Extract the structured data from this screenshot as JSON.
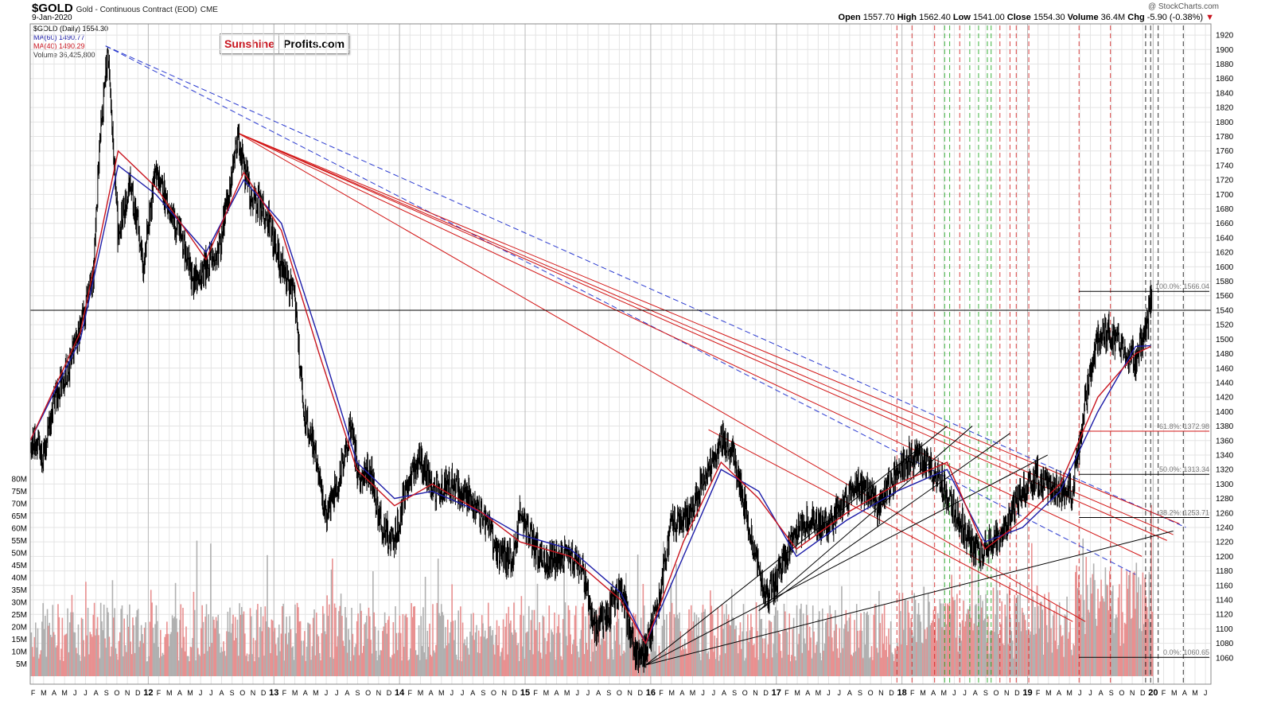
{
  "header": {
    "symbol": "$GOLD",
    "title": "Gold - Continuous Contract (EOD)",
    "exchange": "CME",
    "date": "9-Jan-2020",
    "source": "@ StockCharts.com",
    "open_label": "Open",
    "open": "1557.70",
    "high_label": "High",
    "high": "1562.40",
    "low_label": "Low",
    "low": "1541.00",
    "close_label": "Close",
    "close": "1554.30",
    "volume_label": "Volume",
    "volume": "36.4M",
    "chg_label": "Chg",
    "chg": "-5.90 (-0.38%)"
  },
  "legend": {
    "price": "$GOLD (Daily) 1554.30",
    "ma60": "MA(60) 1490.77",
    "ma40": "MA(40) 1490.29",
    "volume": "Volume 36,425,800"
  },
  "logo": {
    "part1": "Sunshine",
    "part2": "Profits.com"
  },
  "colors": {
    "ma60": "#1c1ca8",
    "ma40": "#c8141e",
    "candle": "#000000",
    "vol_up": "#b0b0b0",
    "vol_down": "#e89090",
    "red_line": "#d21414",
    "blue_dash": "#2a3ad0",
    "green_dash": "#10a010",
    "grid": "#e4e4e4"
  },
  "chart_data": {
    "type": "line",
    "title": "$GOLD Gold - Continuous Contract (EOD)",
    "xlabel": "",
    "ylabel": "",
    "ylim": [
      1040,
      1930
    ],
    "price_ticks": [
      1060,
      1080,
      1100,
      1120,
      1140,
      1160,
      1180,
      1200,
      1220,
      1240,
      1260,
      1280,
      1300,
      1320,
      1340,
      1360,
      1380,
      1400,
      1420,
      1440,
      1460,
      1480,
      1500,
      1520,
      1540,
      1560,
      1580,
      1600,
      1620,
      1640,
      1660,
      1680,
      1700,
      1720,
      1740,
      1760,
      1780,
      1800,
      1820,
      1840,
      1860,
      1880,
      1900,
      1920
    ],
    "volume_ticks": [
      "5M",
      "10M",
      "15M",
      "20M",
      "25M",
      "30M",
      "35M",
      "40M",
      "45M",
      "50M",
      "55M",
      "60M",
      "65M",
      "70M",
      "75M",
      "80M"
    ],
    "volume_max_m": 80,
    "x_range": [
      2011.1,
      2020.5
    ],
    "month_letters": [
      "J",
      "F",
      "M",
      "A",
      "M",
      "J",
      "J",
      "A",
      "S",
      "O",
      "N",
      "D"
    ],
    "year_labels": [
      "12",
      "13",
      "14",
      "15",
      "16",
      "17",
      "18",
      "19",
      "20"
    ],
    "grid": true,
    "series": [
      {
        "name": "$GOLD",
        "style": "candles",
        "x": [
          2011.1,
          2011.2,
          2011.3,
          2011.4,
          2011.5,
          2011.6,
          2011.65,
          2011.72,
          2011.8,
          2011.9,
          2012.0,
          2012.1,
          2012.2,
          2012.3,
          2012.4,
          2012.5,
          2012.6,
          2012.7,
          2012.75,
          2012.85,
          2012.95,
          2013.0,
          2013.1,
          2013.2,
          2013.28,
          2013.35,
          2013.45,
          2013.55,
          2013.65,
          2013.72,
          2013.8,
          2013.9,
          2014.0,
          2014.1,
          2014.2,
          2014.3,
          2014.45,
          2014.6,
          2014.72,
          2014.85,
          2014.95,
          2015.0,
          2015.1,
          2015.2,
          2015.35,
          2015.5,
          2015.6,
          2015.7,
          2015.8,
          2015.92,
          2016.0,
          2016.1,
          2016.2,
          2016.35,
          2016.5,
          2016.6,
          2016.7,
          2016.8,
          2016.95,
          2017.0,
          2017.15,
          2017.3,
          2017.45,
          2017.6,
          2017.7,
          2017.85,
          2017.95,
          2018.1,
          2018.25,
          2018.35,
          2018.45,
          2018.55,
          2018.65,
          2018.75,
          2018.85,
          2018.95,
          2019.1,
          2019.2,
          2019.3,
          2019.4,
          2019.5,
          2019.6,
          2019.7,
          2019.8,
          2019.9,
          2020.0,
          2020.02
        ],
        "y": [
          1360,
          1340,
          1420,
          1460,
          1520,
          1580,
          1760,
          1900,
          1640,
          1720,
          1600,
          1740,
          1680,
          1640,
          1580,
          1600,
          1620,
          1720,
          1780,
          1700,
          1680,
          1660,
          1600,
          1560,
          1400,
          1360,
          1260,
          1300,
          1380,
          1300,
          1320,
          1240,
          1220,
          1300,
          1340,
          1290,
          1300,
          1280,
          1250,
          1200,
          1200,
          1260,
          1220,
          1190,
          1200,
          1180,
          1100,
          1120,
          1160,
          1060,
          1070,
          1140,
          1240,
          1260,
          1320,
          1360,
          1340,
          1260,
          1140,
          1150,
          1220,
          1250,
          1240,
          1280,
          1300,
          1270,
          1300,
          1340,
          1330,
          1300,
          1270,
          1230,
          1200,
          1220,
          1230,
          1280,
          1310,
          1300,
          1290,
          1290,
          1420,
          1500,
          1510,
          1490,
          1470,
          1530,
          1554
        ]
      },
      {
        "name": "MA(60)",
        "x": [
          2011.1,
          2011.5,
          2011.8,
          2012.1,
          2012.5,
          2012.8,
          2013.1,
          2013.4,
          2013.7,
          2014.0,
          2014.3,
          2014.7,
          2015.0,
          2015.4,
          2015.8,
          2016.0,
          2016.3,
          2016.6,
          2016.9,
          2017.2,
          2017.6,
          2018.0,
          2018.4,
          2018.7,
          2019.0,
          2019.3,
          2019.6,
          2019.9,
          2020.02
        ],
        "y": [
          1360,
          1500,
          1740,
          1700,
          1620,
          1720,
          1660,
          1500,
          1330,
          1280,
          1290,
          1260,
          1230,
          1210,
          1150,
          1080,
          1200,
          1320,
          1290,
          1200,
          1250,
          1290,
          1320,
          1220,
          1240,
          1290,
          1400,
          1490,
          1491
        ]
      },
      {
        "name": "MA(40)",
        "x": [
          2011.1,
          2011.5,
          2011.8,
          2012.1,
          2012.5,
          2012.8,
          2013.1,
          2013.4,
          2013.7,
          2014.0,
          2014.3,
          2014.7,
          2015.0,
          2015.4,
          2015.8,
          2016.0,
          2016.3,
          2016.6,
          2016.9,
          2017.2,
          2017.6,
          2018.0,
          2018.4,
          2018.7,
          2019.0,
          2019.3,
          2019.6,
          2019.9,
          2020.02
        ],
        "y": [
          1360,
          1510,
          1760,
          1710,
          1610,
          1730,
          1650,
          1480,
          1320,
          1270,
          1300,
          1260,
          1220,
          1200,
          1140,
          1080,
          1220,
          1330,
          1280,
          1210,
          1260,
          1300,
          1330,
          1210,
          1250,
          1300,
          1420,
          1480,
          1490
        ]
      },
      {
        "name": "Volume",
        "style": "bars",
        "x": [
          2011.1,
          2020.05
        ],
        "y_m": [
          5,
          80
        ]
      }
    ],
    "annotations": [
      {
        "text": "100.0%: 1566.04",
        "y": 1566.04
      },
      {
        "text": "61.8%: 1372.98",
        "y": 1372.98
      },
      {
        "text": "50.0%: 1313.34",
        "y": 1313.34
      },
      {
        "text": "38.2%: 1253.71",
        "y": 1253.71
      },
      {
        "text": "0.0%: 1060.65",
        "y": 1060.65
      }
    ],
    "horizontal_line": 1540
  }
}
